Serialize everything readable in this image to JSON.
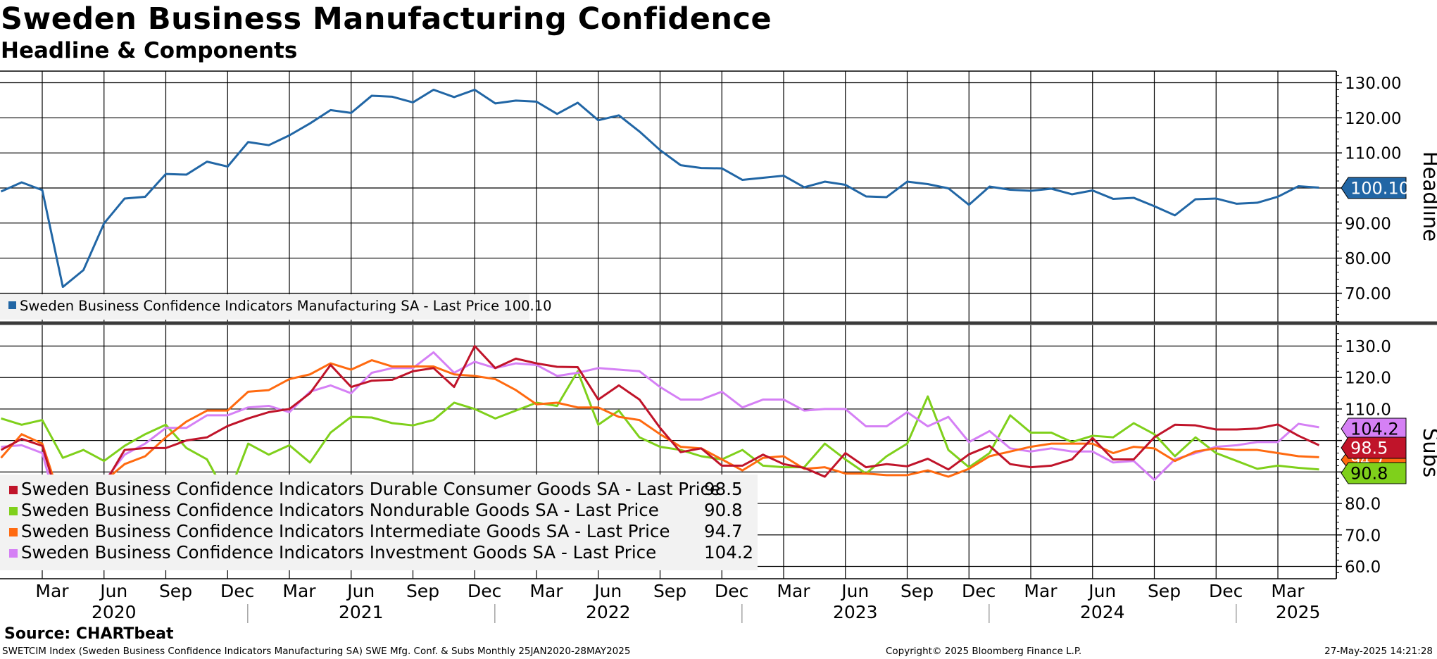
{
  "title": "Sweden Business Manufacturing Confidence",
  "subtitle": "Headline & Components",
  "source": "Source: CHARTbeat",
  "footer": {
    "left": "SWETCIM Index (Sweden Business Confidence Indicators Manufacturing SA) SWE Mfg. Conf. & Subs  Monthly 25JAN2020-28MAY2025",
    "middle": "Copyright© 2025 Bloomberg Finance L.P.",
    "right": "27-May-2025 14:21:28"
  },
  "colors": {
    "headline": "#2166a5",
    "durable": "#c0142a",
    "nondurable": "#7fd01b",
    "intermediate": "#ff6a10",
    "investment": "#d580f5",
    "grid": "#000000"
  },
  "chart_data": [
    {
      "type": "line",
      "panel": "top",
      "axis_title": "Headline",
      "ylim": [
        61,
        133
      ],
      "y_ticks": [
        "130.00",
        "120.00",
        "110.00",
        "100.00",
        "90.00",
        "80.00",
        "70.00"
      ],
      "grid": true,
      "legend_position": "bottom-left",
      "series": [
        {
          "name": "Sweden Business Confidence Indicators Manufacturing SA - Last Price",
          "last_value_label": "100.10",
          "color": "#2166a5",
          "values": [
            99.0,
            101.6,
            99.4,
            71.8,
            76.6,
            89.9,
            97.0,
            97.5,
            104.0,
            103.8,
            107.5,
            106.1,
            113.1,
            112.2,
            115.0,
            118.4,
            122.2,
            121.4,
            126.3,
            126.0,
            124.4,
            128.0,
            125.9,
            128.0,
            124.1,
            124.9,
            124.6,
            121.1,
            124.3,
            119.3,
            120.7,
            116.1,
            110.8,
            106.5,
            105.7,
            105.6,
            102.3,
            102.9,
            103.5,
            100.2,
            101.8,
            100.9,
            97.6,
            97.4,
            101.8,
            101.1,
            99.9,
            95.2,
            100.4,
            99.5,
            99.2,
            99.8,
            98.2,
            99.3,
            96.9,
            97.2,
            94.8,
            92.2,
            96.8,
            97.0,
            95.5,
            95.8,
            97.5,
            100.5,
            100.1
          ]
        }
      ]
    },
    {
      "type": "line",
      "panel": "bottom",
      "axis_title": "Subs",
      "ylim": [
        56.5,
        134
      ],
      "y_ticks": [
        "130.0",
        "120.0",
        "110.0",
        "100.0",
        "90.0",
        "80.0",
        "70.0",
        "60.0"
      ],
      "grid": true,
      "legend_position": "bottom-left",
      "series": [
        {
          "name": "Sweden Business Confidence Indicators Durable Consumer Goods SA - Last Price",
          "last_value_label": "98.5",
          "color": "#c0142a",
          "values": [
            97.0,
            100.5,
            98.3,
            76.5,
            80.0,
            86.0,
            97.0,
            97.6,
            97.6,
            100.0,
            101.0,
            104.6,
            107.0,
            109.0,
            110.0,
            115.0,
            124.0,
            117.0,
            119.0,
            119.3,
            122.0,
            123.0,
            117.0,
            130.0,
            123.0,
            126.0,
            124.5,
            123.4,
            123.3,
            113.0,
            117.5,
            113.0,
            104.0,
            96.3,
            97.5,
            92.0,
            92.0,
            95.5,
            92.5,
            91.3,
            88.5,
            96.0,
            91.5,
            92.5,
            91.8,
            94.2,
            90.8,
            95.6,
            98.3,
            92.5,
            91.5,
            92.0,
            94.0,
            100.8,
            94.0,
            94.0,
            101.0,
            105.0,
            104.8,
            103.5,
            103.5,
            103.8,
            105.1,
            101.5,
            98.5
          ]
        },
        {
          "name": "Sweden Business Confidence Indicators Nondurable Goods SA - Last Price",
          "last_value_label": "90.8",
          "color": "#7fd01b",
          "values": [
            107.0,
            105.0,
            106.5,
            94.5,
            97.0,
            93.5,
            98.3,
            102.0,
            105.0,
            97.6,
            94.0,
            82.0,
            99.0,
            95.5,
            98.5,
            93.0,
            102.5,
            107.5,
            107.3,
            105.5,
            104.8,
            106.5,
            112.0,
            110.0,
            107.0,
            109.5,
            112.0,
            111.0,
            122.0,
            105.0,
            109.5,
            101.0,
            98.0,
            97.0,
            95.0,
            94.0,
            97.0,
            92.0,
            91.5,
            91.5,
            99.0,
            94.0,
            89.5,
            95.0,
            99.0,
            114.0,
            97.0,
            91.5,
            96.0,
            108.0,
            102.5,
            102.5,
            99.5,
            101.5,
            101.0,
            105.5,
            102.0,
            95.0,
            101.0,
            96.0,
            93.5,
            91.0,
            92.0,
            91.3,
            90.8
          ]
        },
        {
          "name": "Sweden Business Confidence Indicators Intermediate Goods SA - Last Price",
          "last_value_label": "94.7",
          "color": "#ff6a10",
          "values": [
            94.5,
            102.0,
            99.0,
            79.0,
            80.0,
            87.0,
            92.5,
            95.0,
            101.0,
            106.0,
            109.5,
            109.5,
            115.5,
            116.0,
            119.5,
            121.0,
            124.5,
            122.5,
            125.5,
            123.5,
            123.5,
            123.5,
            121.0,
            120.5,
            119.5,
            116.0,
            111.5,
            112.0,
            110.5,
            110.5,
            107.5,
            106.5,
            102.0,
            98.0,
            97.5,
            94.0,
            90.5,
            94.5,
            95.0,
            91.0,
            91.5,
            89.5,
            89.5,
            89.0,
            89.0,
            90.5,
            88.5,
            91.0,
            95.0,
            96.5,
            98.0,
            99.0,
            99.0,
            99.0,
            96.0,
            98.0,
            97.5,
            93.5,
            96.5,
            97.5,
            97.0,
            97.0,
            96.0,
            95.0,
            94.7
          ]
        },
        {
          "name": "Sweden Business Confidence Indicators Investment Goods SA - Last Price",
          "last_value_label": "104.2",
          "color": "#d580f5",
          "values": [
            98.0,
            98.5,
            96.0,
            72.5,
            80.0,
            87.0,
            95.5,
            99.0,
            104.0,
            104.0,
            108.0,
            108.0,
            110.5,
            111.0,
            109.0,
            115.5,
            117.5,
            115.0,
            121.5,
            123.0,
            123.0,
            128.0,
            121.5,
            125.0,
            123.0,
            124.5,
            124.0,
            120.5,
            121.5,
            123.0,
            122.5,
            122.0,
            117.0,
            113.0,
            113.0,
            115.5,
            110.5,
            113.0,
            113.0,
            109.5,
            110.0,
            110.0,
            104.5,
            104.5,
            109.0,
            104.5,
            107.5,
            99.5,
            103.0,
            97.5,
            96.5,
            97.5,
            96.5,
            96.5,
            93.0,
            93.5,
            87.5,
            94.0,
            96.0,
            98.0,
            98.5,
            99.5,
            99.5,
            105.3,
            104.2
          ]
        }
      ]
    }
  ],
  "x_axis": {
    "month_labels": [
      {
        "label": "Mar",
        "index": 2
      },
      {
        "label": "Jun",
        "index": 5
      },
      {
        "label": "Sep",
        "index": 8
      },
      {
        "label": "Dec",
        "index": 11
      },
      {
        "label": "Mar",
        "index": 14
      },
      {
        "label": "Jun",
        "index": 17
      },
      {
        "label": "Sep",
        "index": 20
      },
      {
        "label": "Dec",
        "index": 23
      },
      {
        "label": "Mar",
        "index": 26
      },
      {
        "label": "Jun",
        "index": 29
      },
      {
        "label": "Sep",
        "index": 32
      },
      {
        "label": "Dec",
        "index": 35
      },
      {
        "label": "Mar",
        "index": 38
      },
      {
        "label": "Jun",
        "index": 41
      },
      {
        "label": "Sep",
        "index": 44
      },
      {
        "label": "Dec",
        "index": 47
      },
      {
        "label": "Mar",
        "index": 50
      },
      {
        "label": "Jun",
        "index": 53
      },
      {
        "label": "Sep",
        "index": 56
      },
      {
        "label": "Dec",
        "index": 59
      },
      {
        "label": "Mar",
        "index": 62
      }
    ],
    "year_labels": [
      {
        "label": "2020",
        "index": 5
      },
      {
        "label": "2021",
        "index": 17
      },
      {
        "label": "2022",
        "index": 29
      },
      {
        "label": "2023",
        "index": 41
      },
      {
        "label": "2024",
        "index": 53
      },
      {
        "label": "2025",
        "index": 62.5
      }
    ]
  }
}
